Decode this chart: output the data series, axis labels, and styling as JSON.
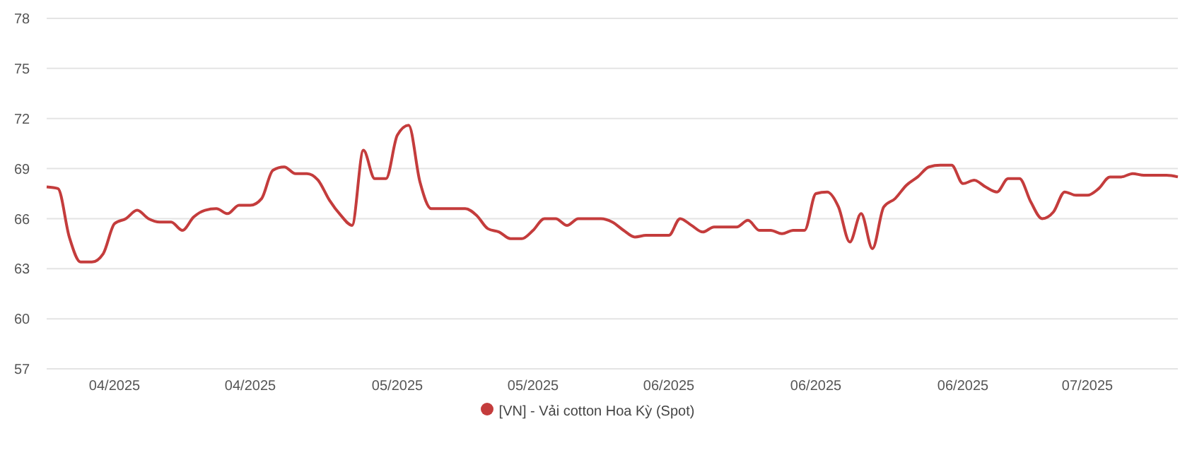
{
  "chart_data": {
    "type": "line",
    "categories": [
      null,
      null,
      null,
      null,
      null,
      null,
      "04/2025",
      null,
      null,
      null,
      null,
      null,
      null,
      null,
      null,
      null,
      null,
      null,
      "04/2025",
      null,
      null,
      null,
      null,
      null,
      null,
      null,
      null,
      null,
      null,
      null,
      null,
      "05/2025",
      null,
      null,
      null,
      null,
      null,
      null,
      null,
      null,
      null,
      null,
      null,
      "05/2025",
      null,
      null,
      null,
      null,
      null,
      null,
      null,
      null,
      null,
      null,
      null,
      "06/2025",
      null,
      null,
      null,
      null,
      null,
      null,
      null,
      null,
      null,
      null,
      null,
      null,
      "06/2025",
      null,
      null,
      null,
      null,
      null,
      null,
      null,
      null,
      null,
      null,
      null,
      null,
      "06/2025",
      null,
      null,
      null,
      null,
      null,
      null,
      null,
      null,
      null,
      null,
      "07/2025",
      null,
      null,
      null,
      null,
      null,
      null,
      null,
      null
    ],
    "series": [
      {
        "name": "[VN] - Vải cotton Hoa Kỳ (Spot)",
        "color": "#c43c3c",
        "values": [
          67.9,
          67.8,
          64.9,
          63.4,
          63.4,
          63.9,
          65.7,
          66.0,
          66.5,
          66.0,
          65.8,
          65.8,
          65.3,
          66.1,
          66.5,
          66.6,
          66.3,
          66.8,
          66.8,
          67.2,
          68.9,
          69.1,
          68.7,
          68.7,
          68.3,
          67.1,
          66.2,
          65.6,
          70.1,
          68.4,
          68.4,
          71.0,
          71.6,
          68.2,
          66.6,
          66.6,
          66.6,
          66.6,
          66.2,
          65.4,
          65.2,
          64.8,
          64.8,
          65.3,
          66.0,
          66.0,
          65.6,
          66.0,
          66.0,
          66.0,
          65.8,
          65.3,
          64.9,
          65.0,
          65.0,
          65.0,
          66.0,
          65.6,
          65.2,
          65.5,
          65.5,
          65.5,
          65.9,
          65.3,
          65.3,
          65.1,
          65.3,
          65.3,
          67.5,
          67.6,
          66.7,
          64.6,
          66.3,
          64.2,
          66.7,
          67.2,
          68.0,
          68.5,
          69.1,
          69.2,
          69.2,
          68.1,
          68.3,
          67.9,
          67.6,
          68.4,
          68.4,
          67.0,
          66.0,
          66.4,
          67.6,
          67.4,
          67.4,
          67.8,
          68.5,
          68.5,
          68.7,
          68.6,
          68.6,
          68.6,
          68.5
        ]
      }
    ],
    "ylim": [
      57,
      78
    ],
    "yticks": [
      57,
      60,
      63,
      66,
      69,
      72,
      75,
      78
    ],
    "grid": "y",
    "legend": "bottom",
    "marker": "none",
    "line_style": "solid"
  }
}
